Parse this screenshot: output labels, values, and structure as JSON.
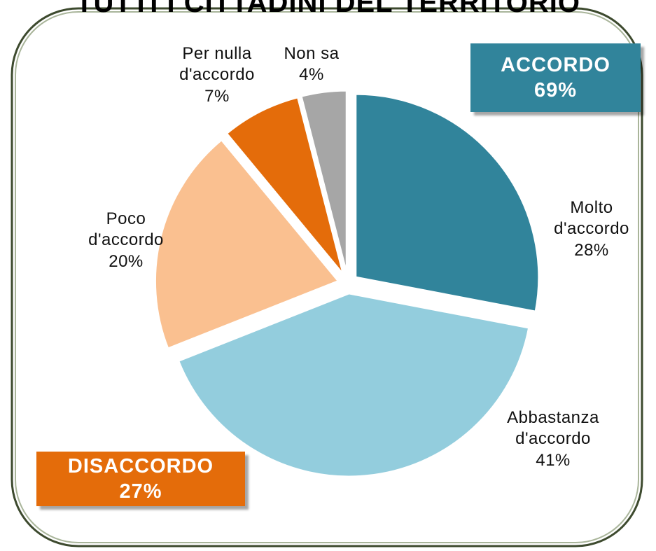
{
  "chart_data": {
    "type": "pie",
    "title": "TUTTI I CITTADINI DEL TERRITORIO",
    "categories": [
      "Molto d'accordo",
      "Abbastanza d'accordo",
      "Poco d'accordo",
      "Per nulla d'accordo",
      "Non sa"
    ],
    "values": [
      28,
      41,
      20,
      7,
      4
    ],
    "value_labels": [
      "28%",
      "41%",
      "20%",
      "7%",
      "4%"
    ],
    "colors": [
      "#31849b",
      "#93cddd",
      "#fac090",
      "#e46c0a",
      "#a6a6a6"
    ],
    "annotations": [
      {
        "title": "ACCORDO",
        "label": "69%",
        "color": "#31849b"
      },
      {
        "title": "DISACCORDO",
        "label": "27%",
        "color": "#e46c0a"
      }
    ]
  }
}
